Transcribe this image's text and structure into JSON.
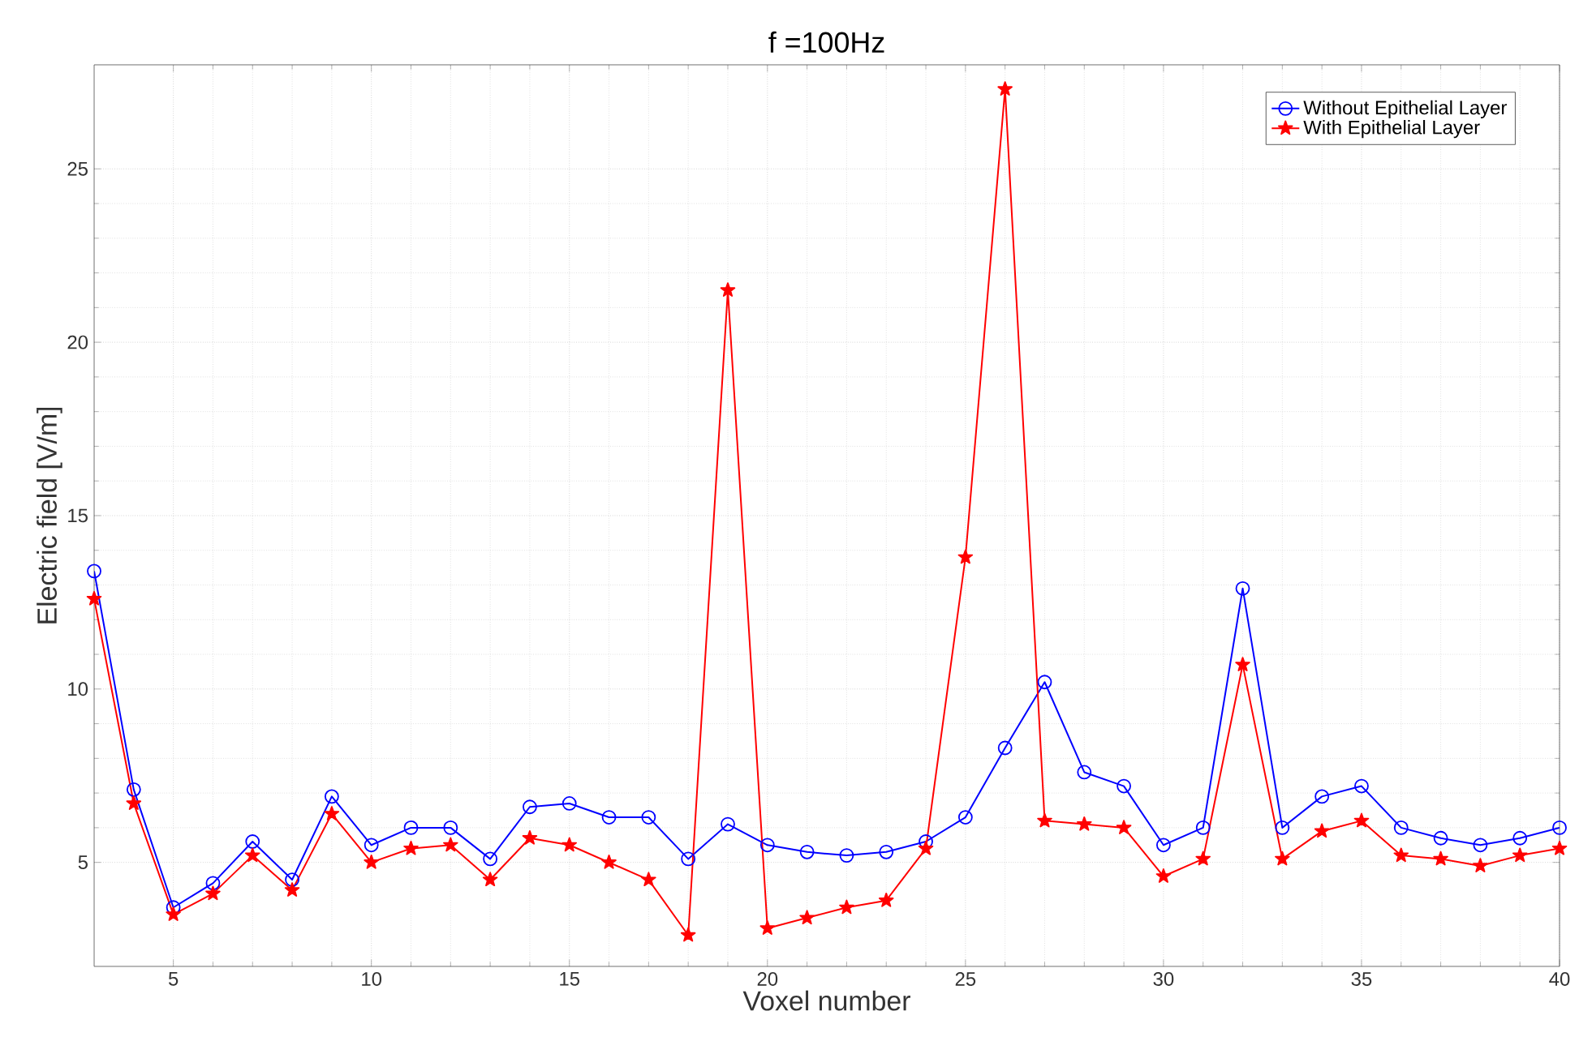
{
  "chart_data": {
    "type": "line",
    "title": "f =100Hz",
    "xlabel": "Voxel number",
    "ylabel": "Electric field [V/m]",
    "x": [
      3,
      4,
      5,
      6,
      7,
      8,
      9,
      10,
      11,
      12,
      13,
      14,
      15,
      16,
      17,
      18,
      19,
      20,
      21,
      22,
      23,
      24,
      25,
      26,
      27,
      28,
      29,
      30,
      31,
      32,
      33,
      34,
      35,
      36,
      37,
      38,
      39,
      40
    ],
    "series": [
      {
        "name": "Without Epithelial Layer",
        "color": "#0000ff",
        "marker": "circle",
        "values": [
          13.4,
          7.1,
          3.7,
          4.4,
          5.6,
          4.5,
          6.9,
          5.5,
          6.0,
          6.0,
          5.1,
          6.6,
          6.7,
          6.3,
          6.3,
          5.1,
          6.1,
          5.5,
          5.3,
          5.2,
          5.3,
          5.6,
          6.3,
          8.3,
          10.2,
          7.6,
          7.2,
          5.5,
          6.0,
          12.9,
          6.0,
          6.9,
          7.2,
          6.0,
          5.7,
          5.5,
          5.7,
          6.0
        ]
      },
      {
        "name": "With Epithelial Layer",
        "color": "#ff0000",
        "marker": "star",
        "values": [
          12.6,
          6.7,
          3.5,
          4.1,
          5.2,
          4.2,
          6.4,
          5.0,
          5.4,
          5.5,
          4.5,
          5.7,
          5.5,
          5.0,
          4.5,
          2.9,
          21.5,
          3.1,
          3.4,
          3.7,
          3.9,
          5.4,
          13.8,
          27.3,
          6.2,
          6.1,
          6.0,
          4.6,
          5.1,
          10.7,
          5.1,
          5.9,
          6.2,
          5.2,
          5.1,
          4.9,
          5.2,
          5.4
        ]
      }
    ],
    "xlim": [
      3,
      40
    ],
    "ylim": [
      2,
      28
    ],
    "xticks": [
      5,
      10,
      15,
      20,
      25,
      30,
      35,
      40
    ],
    "yticks": [
      5,
      10,
      15,
      20,
      25
    ],
    "grid": true,
    "legend": "top right",
    "line_style": "solid"
  }
}
